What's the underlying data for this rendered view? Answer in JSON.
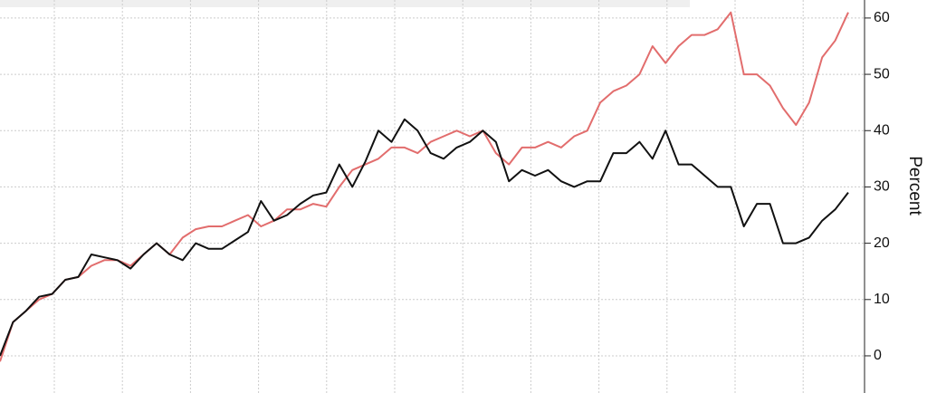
{
  "chart_data": {
    "type": "line",
    "y_label": "Percent",
    "ylim": [
      -6.6,
      63.2
    ],
    "yticks": [
      0,
      10,
      20,
      30,
      40,
      50,
      60
    ],
    "grid": true,
    "series": [
      {
        "color": "#e26d6d",
        "values": [
          -1,
          6,
          8,
          10,
          11,
          13.5,
          14,
          16,
          17,
          17,
          16,
          18,
          20,
          18,
          21,
          22.5,
          23,
          23,
          24,
          25,
          23,
          24,
          26,
          26,
          27,
          26.5,
          30,
          33,
          34,
          35,
          37,
          37,
          36,
          38,
          39,
          40,
          39,
          40,
          36,
          34,
          37,
          37,
          38,
          37,
          39,
          40,
          45,
          47,
          48,
          50,
          55,
          52,
          55,
          57,
          57,
          58,
          61,
          50,
          50,
          48,
          44,
          41,
          45,
          53,
          56,
          61
        ]
      },
      {
        "color": "#111111",
        "values": [
          0,
          6,
          8,
          10.5,
          11,
          13.5,
          14,
          18,
          17.5,
          17,
          15.5,
          18,
          20,
          18,
          17,
          20,
          19,
          19,
          20.5,
          22,
          27.5,
          24,
          25,
          27,
          28.5,
          29,
          34,
          30,
          34.5,
          40,
          38,
          42,
          40,
          36,
          35,
          37,
          38,
          40,
          38,
          31,
          33,
          32,
          33,
          31,
          30,
          31,
          31,
          36,
          36,
          38,
          35,
          40,
          34,
          34,
          32,
          30,
          30,
          23,
          27,
          27,
          20,
          20,
          21,
          24,
          26,
          29
        ]
      }
    ]
  }
}
